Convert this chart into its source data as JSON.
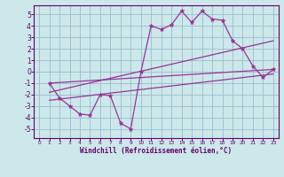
{
  "bg_color": "#cce8ea",
  "plot_bg_color": "#cce8ea",
  "grid_color": "#99bbcc",
  "line_color": "#993399",
  "marker_color": "#993399",
  "xlabel": "Windchill (Refroidissement éolien,°C)",
  "xlabel_color": "#660066",
  "tick_color": "#660066",
  "spine_color": "#660066",
  "xlim": [
    -0.5,
    23.5
  ],
  "ylim": [
    -5.8,
    5.8
  ],
  "yticks": [
    -5,
    -4,
    -3,
    -2,
    -1,
    0,
    1,
    2,
    3,
    4,
    5
  ],
  "xticks": [
    0,
    1,
    2,
    3,
    4,
    5,
    6,
    7,
    8,
    9,
    10,
    11,
    12,
    13,
    14,
    15,
    16,
    17,
    18,
    19,
    20,
    21,
    22,
    23
  ],
  "series1_x": [
    1,
    2,
    3,
    4,
    5,
    6,
    7,
    8,
    9,
    10,
    11,
    12,
    13,
    14,
    15,
    16,
    17,
    18,
    19,
    20,
    21,
    22,
    23
  ],
  "series1_y": [
    -1.0,
    -2.3,
    -3.0,
    -3.7,
    -3.8,
    -2.0,
    -2.1,
    -4.5,
    -5.0,
    0.0,
    4.0,
    3.7,
    4.1,
    5.3,
    4.3,
    5.3,
    4.6,
    4.5,
    2.7,
    2.0,
    0.5,
    -0.5,
    0.2
  ],
  "series2_x": [
    1,
    23
  ],
  "series2_y": [
    -1.0,
    0.2
  ],
  "series3_x": [
    1,
    23
  ],
  "series3_y": [
    -2.5,
    -0.2
  ],
  "series4_x": [
    1,
    23
  ],
  "series4_y": [
    -1.8,
    2.7
  ]
}
